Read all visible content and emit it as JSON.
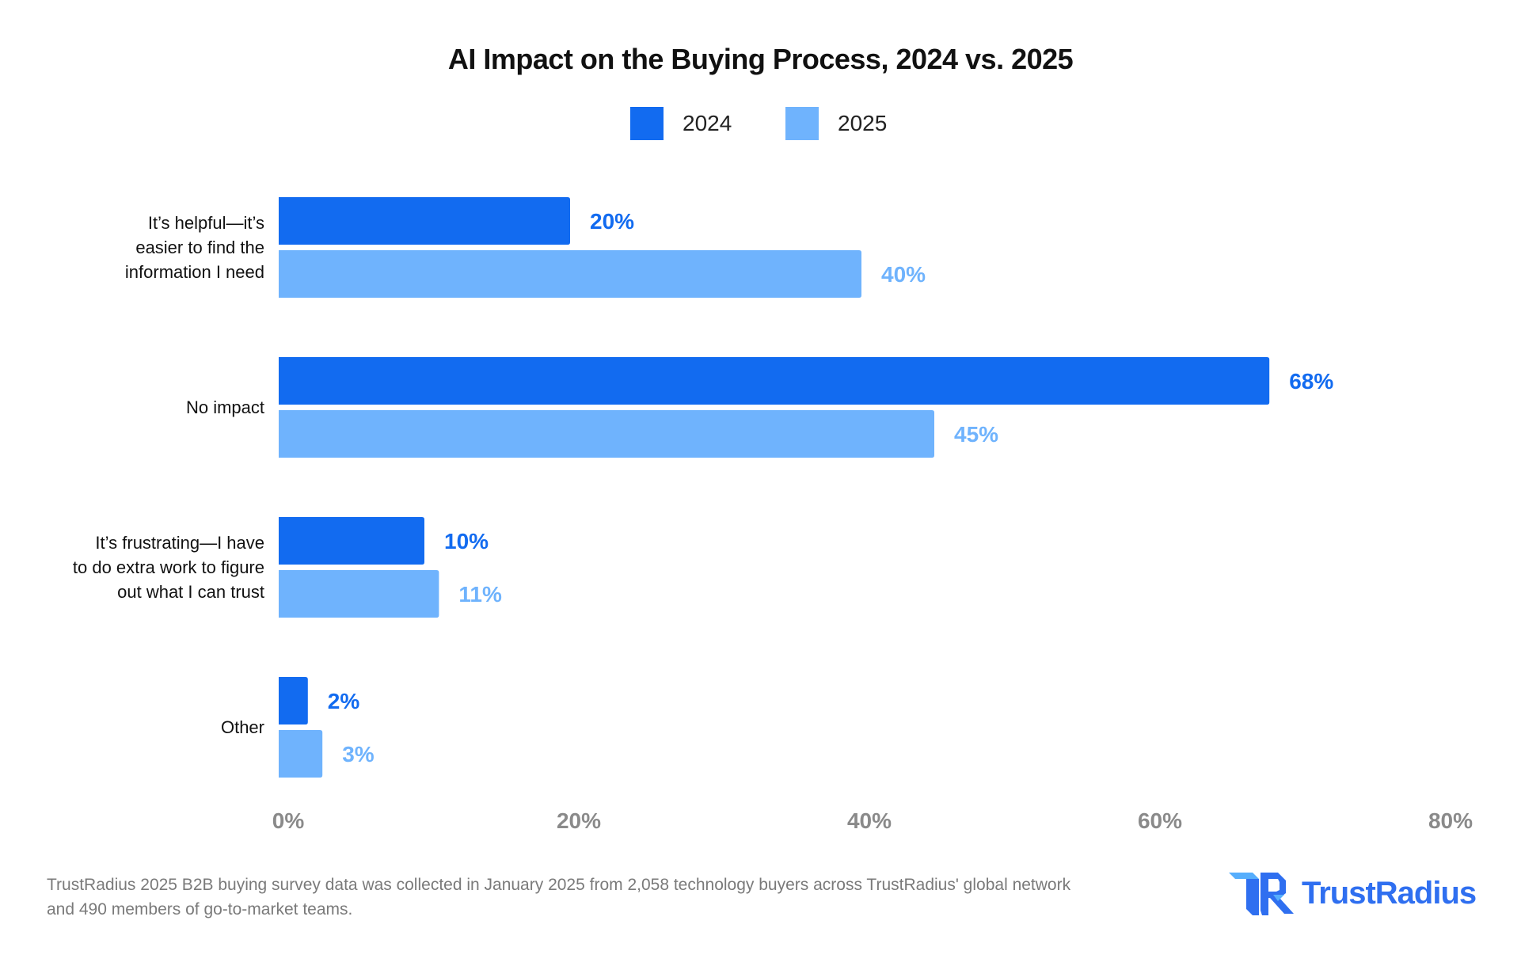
{
  "chart_data": {
    "type": "bar",
    "orientation": "horizontal",
    "title": "AI Impact on the Buying Process, 2024 vs. 2025",
    "categories": [
      [
        "It’s helpful—it’s",
        "easier to find the",
        "information I need"
      ],
      [
        "No impact"
      ],
      [
        "It’s frustrating—I have",
        "to do extra work to figure",
        "out what I can trust"
      ],
      [
        "Other"
      ]
    ],
    "series": [
      {
        "name": "2024",
        "color": "#126BF0",
        "values": [
          20,
          68,
          10,
          2
        ],
        "labels": [
          "20%",
          "68%",
          "10%",
          "2%"
        ]
      },
      {
        "name": "2025",
        "color": "#6FB3FD",
        "values": [
          40,
          45,
          11,
          3
        ],
        "labels": [
          "40%",
          "45%",
          "11%",
          "3%"
        ]
      }
    ],
    "xlim": [
      0,
      80
    ],
    "xticks": [
      "0%",
      "20%",
      "40%",
      "60%",
      "80%"
    ],
    "xlabel": "",
    "ylabel": "",
    "grid": false,
    "legend_position": "top-center"
  },
  "footnote": {
    "line1": "TrustRadius 2025 B2B buying survey data was collected in January 2025 from 2,058 technology buyers across TrustRadius' global network",
    "line2": "and 490 members of go-to-market teams."
  },
  "logo": {
    "text": "TrustRadius"
  }
}
